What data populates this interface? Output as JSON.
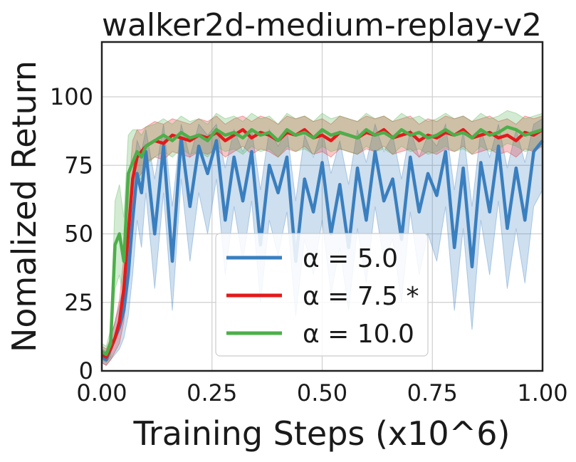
{
  "chart_data": {
    "type": "line",
    "title": "walker2d-medium-replay-v2",
    "xlabel": "Training Steps (x10^6)",
    "ylabel": "Nomalized Return",
    "xlim": [
      0,
      1
    ],
    "ylim": [
      0,
      120
    ],
    "xticks": [
      "0.00",
      "0.25",
      "0.50",
      "0.75",
      "1.00"
    ],
    "yticks": [
      "0",
      "25",
      "50",
      "75",
      "100"
    ],
    "grid": true,
    "legend_position": "lower-center",
    "x": [
      0.0,
      0.01,
      0.02,
      0.03,
      0.04,
      0.05,
      0.06,
      0.07,
      0.08,
      0.09,
      0.1,
      0.12,
      0.14,
      0.16,
      0.18,
      0.2,
      0.22,
      0.24,
      0.26,
      0.28,
      0.3,
      0.32,
      0.34,
      0.36,
      0.38,
      0.4,
      0.42,
      0.44,
      0.46,
      0.48,
      0.5,
      0.52,
      0.54,
      0.56,
      0.58,
      0.6,
      0.62,
      0.64,
      0.66,
      0.68,
      0.7,
      0.72,
      0.74,
      0.76,
      0.78,
      0.8,
      0.82,
      0.84,
      0.86,
      0.88,
      0.9,
      0.92,
      0.94,
      0.96,
      0.98,
      1.0
    ],
    "series": [
      {
        "name": "α = 5.0",
        "color": "#3a7fbf",
        "values": [
          5,
          4,
          8,
          12,
          16,
          22,
          35,
          55,
          72,
          65,
          80,
          50,
          82,
          40,
          85,
          60,
          82,
          72,
          84,
          55,
          78,
          62,
          80,
          46,
          75,
          65,
          78,
          40,
          70,
          58,
          76,
          50,
          68,
          45,
          74,
          55,
          80,
          62,
          70,
          48,
          78,
          58,
          72,
          64,
          80,
          45,
          74,
          38,
          76,
          58,
          82,
          52,
          74,
          55,
          80,
          84
        ],
        "lower": [
          3,
          2,
          4,
          6,
          8,
          12,
          20,
          35,
          55,
          45,
          65,
          30,
          65,
          22,
          70,
          40,
          65,
          50,
          70,
          35,
          60,
          40,
          62,
          25,
          55,
          42,
          58,
          20,
          48,
          35,
          55,
          28,
          45,
          22,
          52,
          32,
          60,
          40,
          48,
          25,
          58,
          35,
          50,
          40,
          60,
          22,
          52,
          15,
          55,
          35,
          62,
          30,
          52,
          32,
          60,
          66
        ],
        "upper": [
          8,
          7,
          12,
          18,
          24,
          32,
          50,
          72,
          84,
          80,
          88,
          70,
          90,
          60,
          90,
          78,
          90,
          86,
          90,
          74,
          88,
          80,
          88,
          66,
          88,
          82,
          88,
          62,
          86,
          78,
          88,
          72,
          84,
          68,
          88,
          76,
          90,
          80,
          86,
          70,
          88,
          78,
          86,
          82,
          90,
          66,
          88,
          60,
          88,
          78,
          90,
          74,
          88,
          76,
          90,
          92
        ]
      },
      {
        "name": "α = 7.5 *",
        "color": "#e31a1c",
        "values": [
          6,
          5,
          8,
          12,
          18,
          30,
          50,
          70,
          78,
          80,
          82,
          84,
          83,
          86,
          85,
          84,
          86,
          85,
          87,
          84,
          86,
          88,
          85,
          87,
          86,
          84,
          87,
          86,
          88,
          85,
          86,
          84,
          87,
          86,
          85,
          87,
          86,
          88,
          85,
          86,
          87,
          84,
          86,
          85,
          87,
          86,
          88,
          85,
          86,
          87,
          85,
          86,
          84,
          87,
          86,
          88
        ],
        "lower": [
          3,
          2,
          4,
          7,
          10,
          18,
          35,
          58,
          70,
          72,
          76,
          78,
          77,
          80,
          79,
          78,
          80,
          79,
          81,
          78,
          80,
          82,
          79,
          81,
          80,
          78,
          81,
          80,
          82,
          79,
          80,
          78,
          81,
          80,
          79,
          81,
          80,
          82,
          79,
          80,
          81,
          78,
          80,
          79,
          81,
          80,
          82,
          79,
          80,
          81,
          79,
          80,
          78,
          81,
          80,
          82
        ],
        "upper": [
          9,
          8,
          12,
          18,
          26,
          42,
          65,
          84,
          88,
          88,
          89,
          91,
          90,
          92,
          91,
          90,
          92,
          91,
          93,
          90,
          92,
          93,
          91,
          93,
          92,
          90,
          93,
          92,
          93,
          91,
          92,
          90,
          93,
          92,
          91,
          93,
          92,
          93,
          91,
          92,
          93,
          90,
          92,
          91,
          93,
          92,
          93,
          91,
          92,
          93,
          91,
          92,
          90,
          93,
          92,
          93
        ]
      },
      {
        "name": "α = 10.0",
        "color": "#4daf4a",
        "values": [
          7,
          6,
          10,
          46,
          50,
          40,
          72,
          76,
          80,
          78,
          82,
          84,
          86,
          84,
          87,
          85,
          86,
          84,
          88,
          86,
          87,
          85,
          88,
          86,
          87,
          84,
          88,
          86,
          87,
          85,
          88,
          86,
          87,
          86,
          85,
          88,
          86,
          87,
          85,
          88,
          86,
          87,
          85,
          86,
          88,
          86,
          87,
          85,
          88,
          86,
          87,
          89,
          88,
          86,
          87,
          88
        ],
        "lower": [
          4,
          3,
          5,
          30,
          35,
          25,
          55,
          64,
          70,
          70,
          75,
          78,
          80,
          78,
          81,
          79,
          80,
          78,
          82,
          80,
          81,
          79,
          82,
          80,
          81,
          78,
          82,
          80,
          81,
          79,
          82,
          80,
          81,
          80,
          79,
          82,
          80,
          81,
          79,
          82,
          80,
          81,
          79,
          80,
          82,
          80,
          81,
          79,
          82,
          80,
          81,
          83,
          82,
          80,
          81,
          82
        ],
        "upper": [
          10,
          9,
          15,
          62,
          68,
          56,
          86,
          88,
          88,
          86,
          89,
          90,
          92,
          90,
          93,
          91,
          92,
          90,
          94,
          92,
          93,
          91,
          94,
          92,
          93,
          90,
          94,
          92,
          93,
          91,
          94,
          92,
          93,
          92,
          91,
          94,
          92,
          93,
          91,
          94,
          92,
          93,
          91,
          92,
          94,
          92,
          93,
          91,
          94,
          92,
          93,
          95,
          94,
          92,
          93,
          94
        ]
      }
    ]
  }
}
